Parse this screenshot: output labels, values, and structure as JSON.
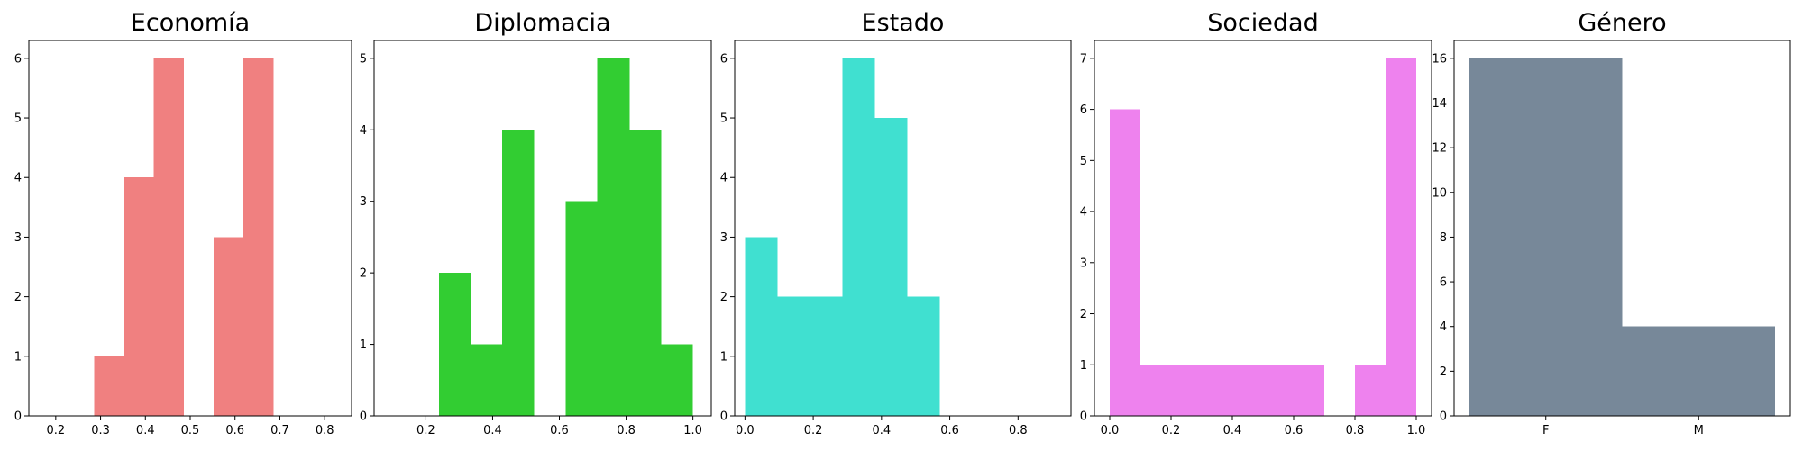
{
  "chart_data": [
    {
      "type": "bar",
      "title": "Economía",
      "color": "#f08080",
      "x_ticks": [
        "0.2",
        "0.3",
        "0.4",
        "0.5",
        "0.6",
        "0.7",
        "0.8"
      ],
      "xlim": [
        0.14,
        0.86
      ],
      "y_ticks": [
        "0",
        "1",
        "2",
        "3",
        "4",
        "5",
        "6"
      ],
      "ylim": [
        0,
        6.3
      ],
      "bins": [
        {
          "x0": 0.286,
          "x1": 0.352,
          "count": 1
        },
        {
          "x0": 0.352,
          "x1": 0.419,
          "count": 4
        },
        {
          "x0": 0.419,
          "x1": 0.486,
          "count": 6
        },
        {
          "x0": 0.486,
          "x1": 0.552,
          "count": 0
        },
        {
          "x0": 0.552,
          "x1": 0.619,
          "count": 3
        },
        {
          "x0": 0.619,
          "x1": 0.686,
          "count": 6
        }
      ]
    },
    {
      "type": "bar",
      "title": "Diplomacia",
      "color": "#32cd32",
      "x_ticks": [
        "0.2",
        "0.4",
        "0.6",
        "0.8",
        "1.0"
      ],
      "xlim": [
        0.045,
        1.055
      ],
      "y_ticks": [
        "0",
        "1",
        "2",
        "3",
        "4",
        "5"
      ],
      "ylim": [
        0,
        5.25
      ],
      "bins": [
        {
          "x0": 0.24,
          "x1": 0.334,
          "count": 2
        },
        {
          "x0": 0.334,
          "x1": 0.429,
          "count": 1
        },
        {
          "x0": 0.429,
          "x1": 0.524,
          "count": 4
        },
        {
          "x0": 0.524,
          "x1": 0.619,
          "count": 0
        },
        {
          "x0": 0.619,
          "x1": 0.714,
          "count": 3
        },
        {
          "x0": 0.714,
          "x1": 0.81,
          "count": 5
        },
        {
          "x0": 0.81,
          "x1": 0.905,
          "count": 4
        },
        {
          "x0": 0.905,
          "x1": 1.0,
          "count": 1
        }
      ]
    },
    {
      "type": "bar",
      "title": "Estado",
      "color": "#40e0d0",
      "x_ticks": [
        "0.0",
        "0.2",
        "0.4",
        "0.6",
        "0.8"
      ],
      "xlim": [
        -0.03,
        0.955
      ],
      "y_ticks": [
        "0",
        "1",
        "2",
        "3",
        "4",
        "5",
        "6"
      ],
      "ylim": [
        0,
        6.3
      ],
      "bins": [
        {
          "x0": 0.0,
          "x1": 0.095,
          "count": 3
        },
        {
          "x0": 0.095,
          "x1": 0.19,
          "count": 2
        },
        {
          "x0": 0.19,
          "x1": 0.286,
          "count": 2
        },
        {
          "x0": 0.286,
          "x1": 0.381,
          "count": 6
        },
        {
          "x0": 0.381,
          "x1": 0.476,
          "count": 5
        },
        {
          "x0": 0.476,
          "x1": 0.571,
          "count": 2
        }
      ]
    },
    {
      "type": "bar",
      "title": "Sociedad",
      "color": "#ee82ee",
      "x_ticks": [
        "0.0",
        "0.2",
        "0.4",
        "0.6",
        "0.8",
        "1.0"
      ],
      "xlim": [
        -0.05,
        1.05
      ],
      "y_ticks": [
        "0",
        "1",
        "2",
        "3",
        "4",
        "5",
        "6",
        "7"
      ],
      "ylim": [
        0,
        7.35
      ],
      "bins": [
        {
          "x0": 0.0,
          "x1": 0.1,
          "count": 6
        },
        {
          "x0": 0.1,
          "x1": 0.2,
          "count": 1
        },
        {
          "x0": 0.2,
          "x1": 0.3,
          "count": 1
        },
        {
          "x0": 0.3,
          "x1": 0.4,
          "count": 1
        },
        {
          "x0": 0.4,
          "x1": 0.5,
          "count": 1
        },
        {
          "x0": 0.5,
          "x1": 0.6,
          "count": 1
        },
        {
          "x0": 0.6,
          "x1": 0.7,
          "count": 1
        },
        {
          "x0": 0.7,
          "x1": 0.8,
          "count": 0
        },
        {
          "x0": 0.8,
          "x1": 0.9,
          "count": 1
        },
        {
          "x0": 0.9,
          "x1": 1.0,
          "count": 7
        }
      ]
    },
    {
      "type": "bar",
      "title": "Género",
      "color": "#778899",
      "x_ticks": [
        "F",
        "M"
      ],
      "tick_positions": [
        0.25,
        0.75
      ],
      "xlim": [
        -0.05,
        1.05
      ],
      "y_ticks": [
        "0",
        "2",
        "4",
        "6",
        "8",
        "10",
        "12",
        "14",
        "16"
      ],
      "ylim": [
        0,
        16.8
      ],
      "bins": [
        {
          "x0": 0.0,
          "x1": 0.5,
          "count": 16
        },
        {
          "x0": 0.5,
          "x1": 1.0,
          "count": 4
        }
      ]
    }
  ]
}
